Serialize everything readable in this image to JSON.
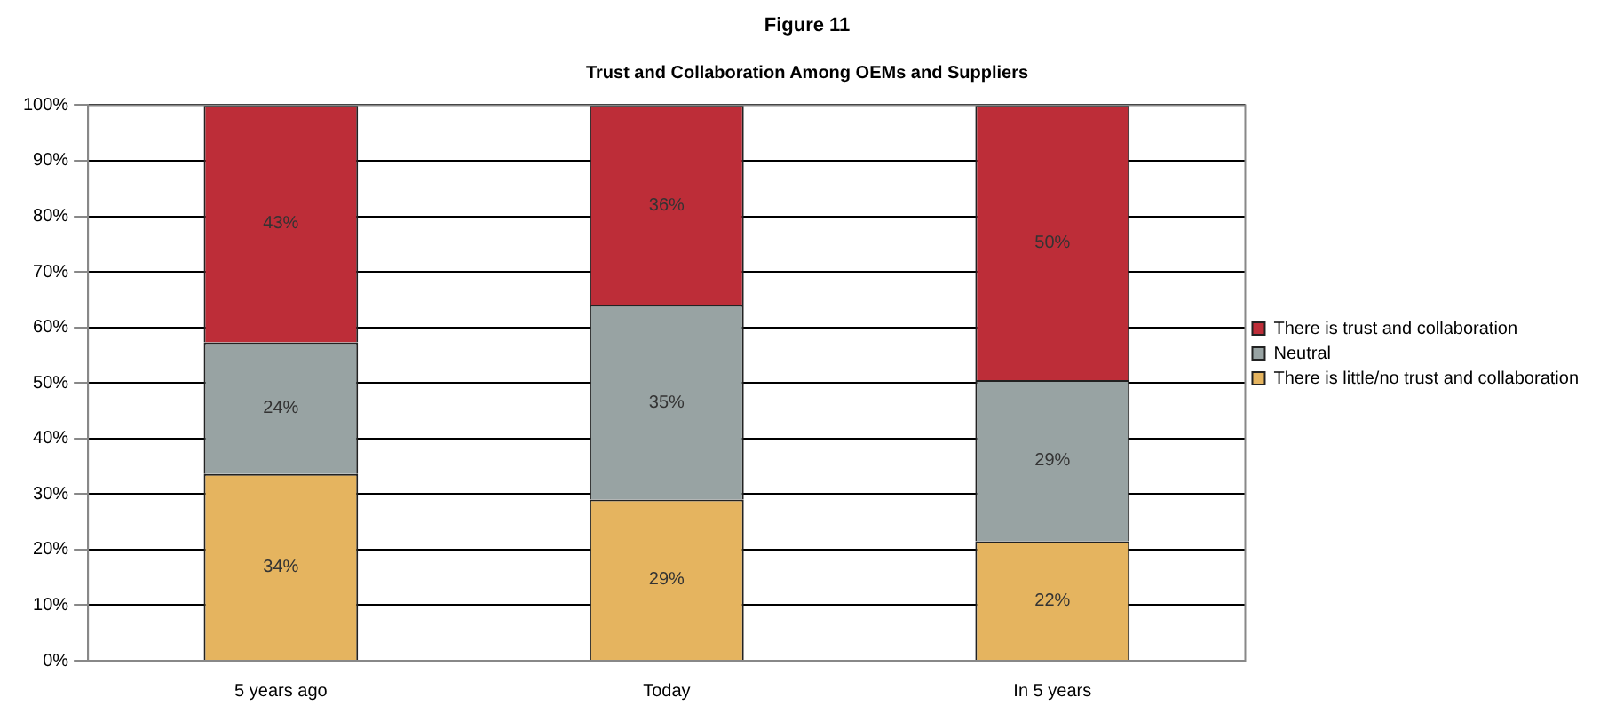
{
  "chart_data": {
    "type": "bar",
    "title": "Figure 11",
    "subtitle": "Trust and Collaboration Among OEMs and Suppliers",
    "categories": [
      "5 years ago",
      "Today",
      "In 5 years"
    ],
    "stacked": true,
    "series": [
      {
        "name": "There is little/no trust and collaboration",
        "color": "#e5b45f",
        "values": [
          33.6,
          29,
          21.5
        ],
        "value_labels": [
          "34%",
          "29%",
          "22%"
        ]
      },
      {
        "name": "Neutral",
        "color": "#98a3a3",
        "values": [
          23.7,
          35,
          29
        ],
        "value_labels": [
          "24%",
          "35%",
          "29%"
        ]
      },
      {
        "name": "There is trust and collaboration",
        "color": "#bd2d38",
        "values": [
          42.7,
          36,
          49.5
        ],
        "value_labels": [
          "43%",
          "36%",
          "50%"
        ]
      }
    ],
    "ylim": [
      0,
      100
    ],
    "yticks": [
      {
        "value": 0,
        "label": "0%"
      },
      {
        "value": 10,
        "label": "10%"
      },
      {
        "value": 20,
        "label": "20%"
      },
      {
        "value": 30,
        "label": "30%"
      },
      {
        "value": 40,
        "label": "40%"
      },
      {
        "value": 50,
        "label": "50%"
      },
      {
        "value": 60,
        "label": "60%"
      },
      {
        "value": 70,
        "label": "70%"
      },
      {
        "value": 80,
        "label": "80%"
      },
      {
        "value": 90,
        "label": "90%"
      },
      {
        "value": 100,
        "label": "100%"
      }
    ],
    "grid": "y",
    "legend": "right"
  }
}
